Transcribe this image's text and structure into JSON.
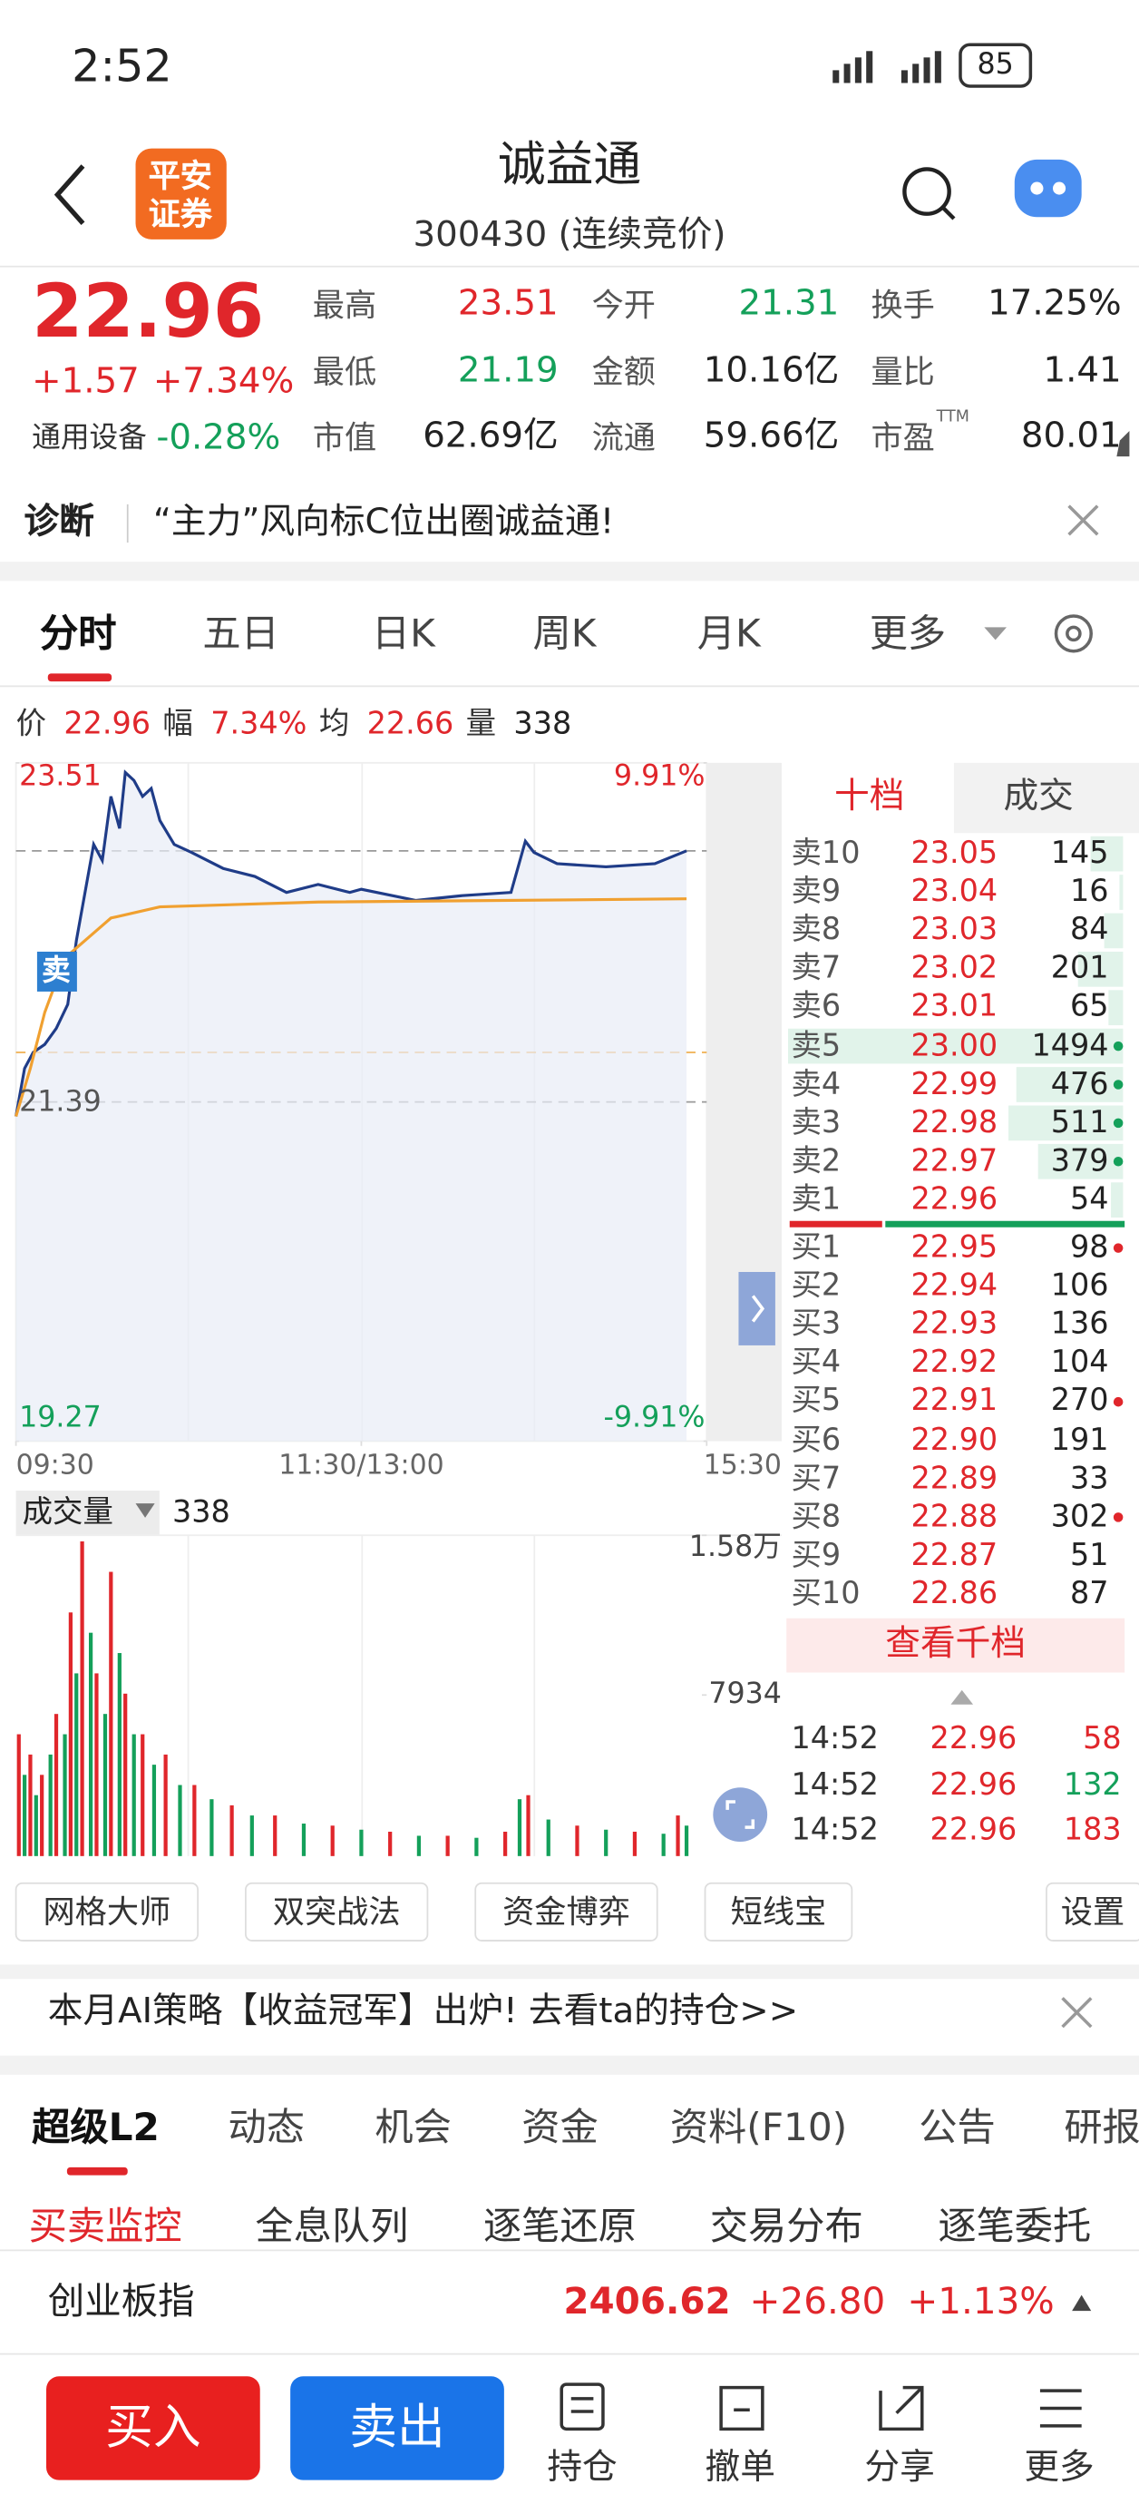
{
  "status_bar": {
    "time": "2:52",
    "battery": "85"
  },
  "header": {
    "logo_top": "平安",
    "logo_bottom": "证券",
    "title": "诚益通",
    "subtitle": "300430 (连续竞价)"
  },
  "quote": {
    "price": "22.96",
    "change": "+1.57",
    "change_pct": "+7.34%",
    "sector": "通用设备",
    "sector_change": "-0.28%",
    "ttm": "TTM",
    "stats": [
      {
        "label": "最高",
        "value": "23.51",
        "color": "#e0262b"
      },
      {
        "label": "今开",
        "value": "21.31",
        "color": "#14a05a"
      },
      {
        "label": "换手",
        "value": "17.25%",
        "color": "#222222"
      },
      {
        "label": "最低",
        "value": "21.19",
        "color": "#14a05a"
      },
      {
        "label": "金额",
        "value": "10.16亿",
        "color": "#222222"
      },
      {
        "label": "量比",
        "value": "1.41",
        "color": "#222222"
      },
      {
        "label": "市值",
        "value": "62.69亿",
        "color": "#222222"
      },
      {
        "label": "流通",
        "value": "59.66亿",
        "color": "#222222"
      },
      {
        "label": "市盈",
        "value": "80.01",
        "color": "#222222"
      }
    ]
  },
  "diagnosis": {
    "label": "诊断",
    "text": "“主力”风向标C位出圈诚益通!"
  },
  "chart_tabs": [
    "分时",
    "五日",
    "日K",
    "周K",
    "月K",
    "更多"
  ],
  "summary": [
    {
      "label": "价",
      "value": "22.96"
    },
    {
      "label": "幅",
      "value": "7.34%"
    },
    {
      "label": "均",
      "value": "22.66"
    },
    {
      "label": "量",
      "value": "338"
    }
  ],
  "chart_data": [
    {
      "type": "line",
      "ylim": [
        19.27,
        23.51
      ],
      "yticks": [
        23.51,
        21.39,
        19.27
      ],
      "y2lim": [
        -9.91,
        9.91
      ],
      "y2ticks": [
        {
          "value": 9.91,
          "label": "9.91%"
        },
        {
          "value": -9.91,
          "label": "-9.91%"
        }
      ],
      "xlim": [
        0,
        240
      ],
      "xticks": [
        {
          "value": 0,
          "label": "09:30"
        },
        {
          "value": 120,
          "label": "11:30/13:00"
        },
        {
          "value": 240,
          "label": "15:30"
        }
      ],
      "reference_lines": [
        {
          "value": 22.96,
          "color": "#999999"
        },
        {
          "value": 21.39,
          "color": "#999999"
        },
        {
          "value": 21.7,
          "color": "#f0b050"
        }
      ],
      "annotation": {
        "text": "卖",
        "x": 14,
        "y": 22.2
      },
      "series": [
        {
          "color": "#1f3c88",
          "x": [
            0,
            3,
            6,
            10,
            14,
            18,
            21,
            24,
            27,
            30,
            33,
            36,
            38,
            41,
            44,
            47,
            50,
            55,
            61,
            72,
            83,
            94,
            105,
            116,
            120,
            139,
            155,
            172,
            177,
            180,
            188,
            205,
            222,
            233
          ],
          "values": [
            21.3,
            21.6,
            21.7,
            21.75,
            21.85,
            22.0,
            22.4,
            22.7,
            23.0,
            22.9,
            23.3,
            23.1,
            23.45,
            23.4,
            23.3,
            23.35,
            23.15,
            23.0,
            22.95,
            22.85,
            22.8,
            22.7,
            22.75,
            22.7,
            22.72,
            22.65,
            22.68,
            22.7,
            23.02,
            22.95,
            22.88,
            22.86,
            22.88,
            22.96
          ]
        },
        {
          "color": "#f0a030",
          "x": [
            0,
            5,
            10,
            17,
            33,
            50,
            105,
            233
          ],
          "values": [
            21.3,
            21.6,
            21.95,
            22.29,
            22.54,
            22.61,
            22.64,
            22.66
          ]
        }
      ]
    },
    {
      "type": "bar",
      "label": "成交量",
      "value_label": "338",
      "ylim": [
        0,
        15800
      ],
      "yticks": [
        {
          "value": 15800,
          "label": "1.58万"
        },
        7934
      ],
      "xlim": [
        0,
        240
      ],
      "series": [
        {
          "color": "#e0262b",
          "x": [
            1,
            5,
            9,
            14,
            19,
            23,
            28,
            33,
            38,
            44,
            52,
            62,
            75,
            90,
            110,
            130,
            150,
            170,
            178,
            195,
            215,
            230
          ],
          "values": [
            6000,
            5000,
            4000,
            7000,
            12000,
            15500,
            9000,
            14000,
            8000,
            6000,
            5000,
            3500,
            2500,
            2000,
            1500,
            1200,
            1000,
            1200,
            3000,
            1500,
            1200,
            2000
          ]
        },
        {
          "color": "#14a05a",
          "x": [
            3,
            7,
            12,
            17,
            21,
            26,
            31,
            36,
            41,
            48,
            57,
            68,
            82,
            100,
            120,
            140,
            160,
            175,
            185,
            205,
            225,
            233
          ],
          "values": [
            4000,
            3000,
            5000,
            6000,
            9000,
            11000,
            7000,
            10000,
            6000,
            4500,
            3500,
            2800,
            2000,
            1600,
            1300,
            1000,
            900,
            2800,
            1800,
            1300,
            1100,
            1500
          ]
        }
      ]
    }
  ],
  "order_book": {
    "tabs": [
      "十档",
      "成交"
    ],
    "more": "查看千档",
    "max_volume": 1494,
    "asks": [
      {
        "label": "卖10",
        "price": "23.05",
        "volume": 145
      },
      {
        "label": "卖9",
        "price": "23.04",
        "volume": 16
      },
      {
        "label": "卖8",
        "price": "23.03",
        "volume": 84
      },
      {
        "label": "卖7",
        "price": "23.02",
        "volume": 201
      },
      {
        "label": "卖6",
        "price": "23.01",
        "volume": 65
      },
      {
        "label": "卖5",
        "price": "23.00",
        "volume": 1494,
        "dot": "#14a05a"
      },
      {
        "label": "卖4",
        "price": "22.99",
        "volume": 476,
        "dot": "#14a05a"
      },
      {
        "label": "卖3",
        "price": "22.98",
        "volume": 511,
        "dot": "#14a05a"
      },
      {
        "label": "卖2",
        "price": "22.97",
        "volume": 379,
        "dot": "#14a05a"
      },
      {
        "label": "卖1",
        "price": "22.96",
        "volume": 54
      }
    ],
    "bids": [
      {
        "label": "买1",
        "price": "22.95",
        "volume": 98,
        "dot": "#e0262b"
      },
      {
        "label": "买2",
        "price": "22.94",
        "volume": 106
      },
      {
        "label": "买3",
        "price": "22.93",
        "volume": 136
      },
      {
        "label": "买4",
        "price": "22.92",
        "volume": 104
      },
      {
        "label": "买5",
        "price": "22.91",
        "volume": 270,
        "dot": "#e0262b"
      },
      {
        "label": "买6",
        "price": "22.90",
        "volume": 191
      },
      {
        "label": "买7",
        "price": "22.89",
        "volume": 33
      },
      {
        "label": "买8",
        "price": "22.88",
        "volume": 302,
        "dot": "#e0262b"
      },
      {
        "label": "买9",
        "price": "22.87",
        "volume": 51
      },
      {
        "label": "买10",
        "price": "22.86",
        "volume": 87
      }
    ]
  },
  "trades": [
    {
      "time": "14:52",
      "price": "22.96",
      "volume": 58,
      "color": "#e0262b"
    },
    {
      "time": "14:52",
      "price": "22.96",
      "volume": 132,
      "color": "#14a05a"
    },
    {
      "time": "14:52",
      "price": "22.96",
      "volume": 183,
      "color": "#e0262b"
    }
  ],
  "tools": [
    "网格大师",
    "双突战法",
    "资金博弈",
    "短线宝"
  ],
  "settings": "设置",
  "banner": "本月AI策略【收益冠军】出炉! 去看ta的持仓>>",
  "tabs": [
    "超级L2",
    "动态",
    "机会",
    "资金",
    "资料(F10)",
    "公告",
    "研报"
  ],
  "subtabs": [
    "买卖监控",
    "全息队列",
    "逐笔还原",
    "交易分布",
    "逐笔委托"
  ],
  "index": {
    "name": "创业板指",
    "value": "2406.62",
    "change": "+26.80",
    "change_pct": "+1.13%"
  },
  "bottom": {
    "buy": "买入",
    "sell": "卖出",
    "nav": [
      "持仓",
      "撤单",
      "分享",
      "更多"
    ]
  }
}
